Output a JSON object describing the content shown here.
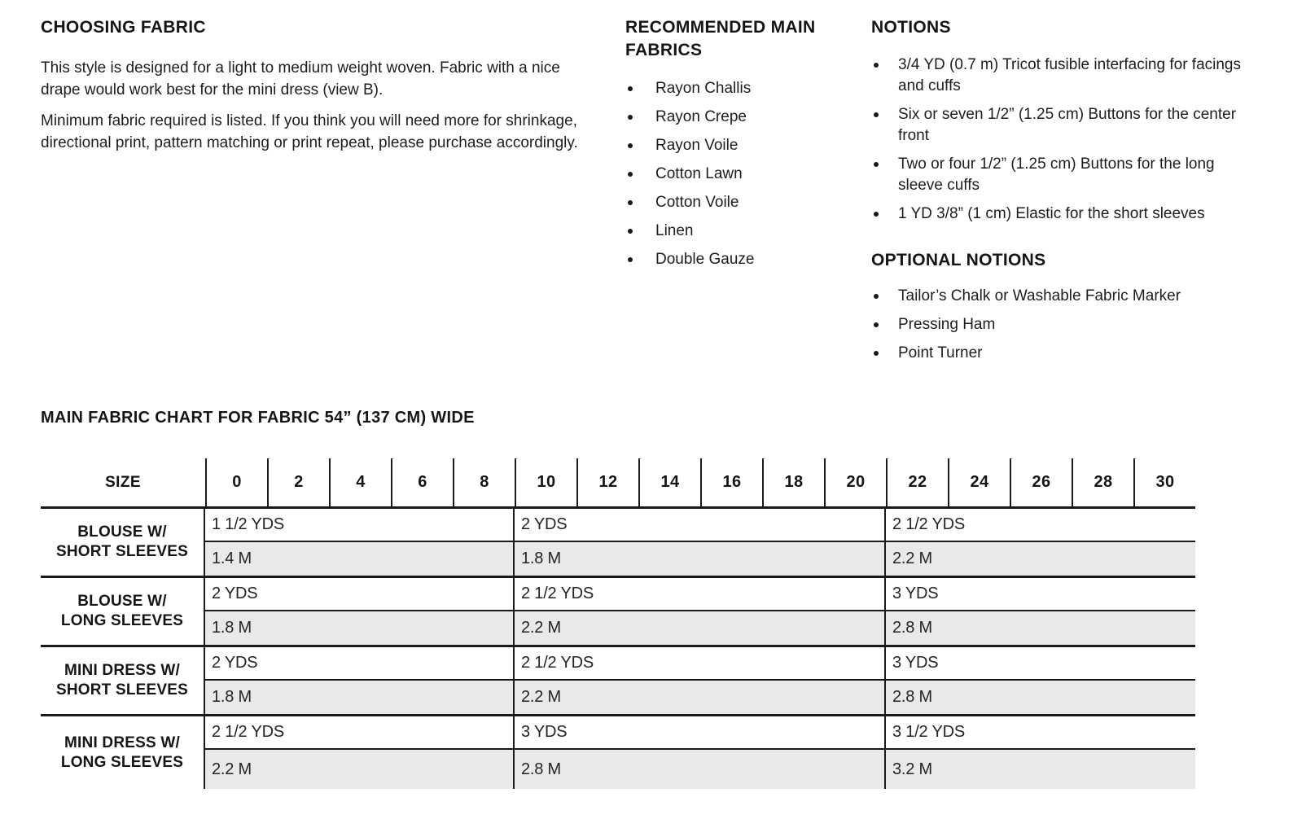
{
  "colors": {
    "text": "#1a1a1a",
    "table_line": "#1a1a1a",
    "metric_row_bg": "#e9e9e9",
    "page_bg": "#ffffff"
  },
  "sections": {
    "choosing_fabric": {
      "heading": "CHOOSING FABRIC",
      "paragraphs": [
        "This style is designed for a light to medium weight woven. Fabric with a nice drape would work best for the mini dress (view B).",
        "Minimum fabric required is listed. If you think you will need more for shrinkage, directional print, pattern matching or print repeat, please purchase accordingly."
      ]
    },
    "recommended_fabrics": {
      "heading": "RECOMMENDED MAIN FABRICS",
      "items": [
        "Rayon Challis",
        "Rayon Crepe",
        "Rayon Voile",
        "Cotton Lawn",
        "Cotton Voile",
        "Linen",
        "Double Gauze"
      ]
    },
    "notions": {
      "heading": "NOTIONS",
      "items": [
        "3/4 YD (0.7 m) Tricot fusible interfacing for facings and cuffs",
        "Six or seven 1/2” (1.25 cm) Buttons for the center front",
        "Two or four 1/2” (1.25 cm) Buttons for the long sleeve cuffs",
        "1 YD 3/8” (1 cm) Elastic for the short sleeves"
      ]
    },
    "optional_notions": {
      "heading": "OPTIONAL NOTIONS",
      "items": [
        "Tailor’s Chalk or Washable Fabric Marker",
        "Pressing Ham",
        "Point Turner"
      ]
    }
  },
  "fabric_chart": {
    "title": "MAIN FABRIC CHART FOR FABRIC 54” (137 CM) WIDE",
    "size_header_label": "SIZE",
    "sizes": [
      "0",
      "2",
      "4",
      "6",
      "8",
      "10",
      "12",
      "14",
      "16",
      "18",
      "20",
      "22",
      "24",
      "26",
      "28",
      "30"
    ],
    "size_spans": [
      "0-8",
      "10-20",
      "22-30"
    ],
    "col_span_counts": [
      5,
      6,
      5
    ],
    "rows": [
      {
        "label_lines": [
          "BLOUSE W/",
          "SHORT SLEEVES"
        ],
        "yards": [
          "1 1/2 YDS",
          "2 YDS",
          "2 1/2 YDS"
        ],
        "meters": [
          "1.4 M",
          "1.8 M",
          "2.2 M"
        ]
      },
      {
        "label_lines": [
          "BLOUSE W/",
          "LONG SLEEVES"
        ],
        "yards": [
          "2 YDS",
          "2 1/2 YDS",
          "3 YDS"
        ],
        "meters": [
          "1.8 M",
          "2.2 M",
          "2.8 M"
        ]
      },
      {
        "label_lines": [
          "MINI DRESS W/",
          "SHORT SLEEVES"
        ],
        "yards": [
          "2 YDS",
          "2 1/2 YDS",
          "3 YDS"
        ],
        "meters": [
          "1.8 M",
          "2.2 M",
          "2.8 M"
        ]
      },
      {
        "label_lines": [
          "MINI DRESS W/",
          "LONG SLEEVES"
        ],
        "yards": [
          "2 1/2 YDS",
          "3 YDS",
          "3 1/2 YDS"
        ],
        "meters": [
          "2.2 M",
          "2.8 M",
          "3.2 M"
        ]
      }
    ]
  }
}
